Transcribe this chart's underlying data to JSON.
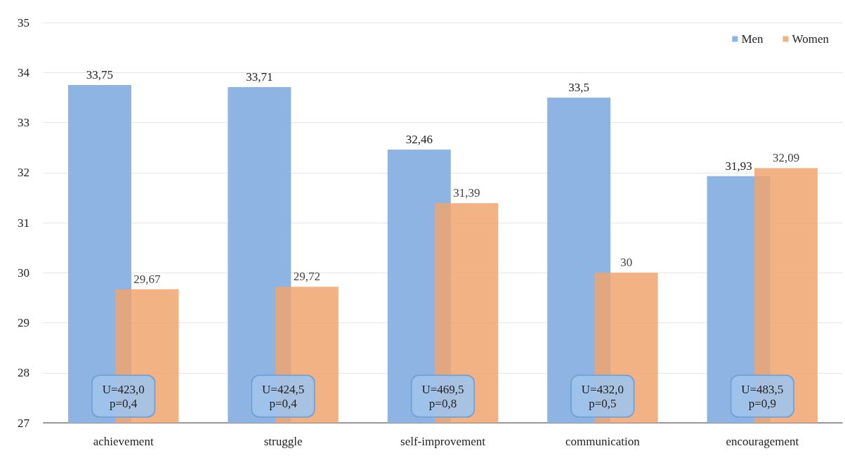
{
  "chart_data": {
    "type": "bar",
    "categories": [
      "achievement",
      "struggle",
      "self-improvement",
      "communication",
      "encouragement"
    ],
    "series": [
      {
        "name": "Men",
        "color": "#8db4e2",
        "values": [
          33.75,
          33.71,
          32.46,
          33.5,
          31.93
        ],
        "value_labels": [
          "33,75",
          "33,71",
          "32,46",
          "33,5",
          "31,93"
        ]
      },
      {
        "name": "Women",
        "color": "#f0a46e",
        "values": [
          29.67,
          29.72,
          31.39,
          30,
          32.09
        ],
        "value_labels": [
          "29,67",
          "29,72",
          "31,39",
          "30",
          "32,09"
        ]
      }
    ],
    "ylim": [
      27,
      35
    ],
    "yticks": [
      27,
      28,
      29,
      30,
      31,
      32,
      33,
      34,
      35
    ],
    "grid": "y",
    "legend": "top right",
    "annotations": [
      "U=423,0\np=0,4",
      "U=424,5\np=0,4",
      "U=469,5\np=0,8",
      "U=432,0\np=0,5",
      "U=483,5\np=0,9"
    ]
  }
}
